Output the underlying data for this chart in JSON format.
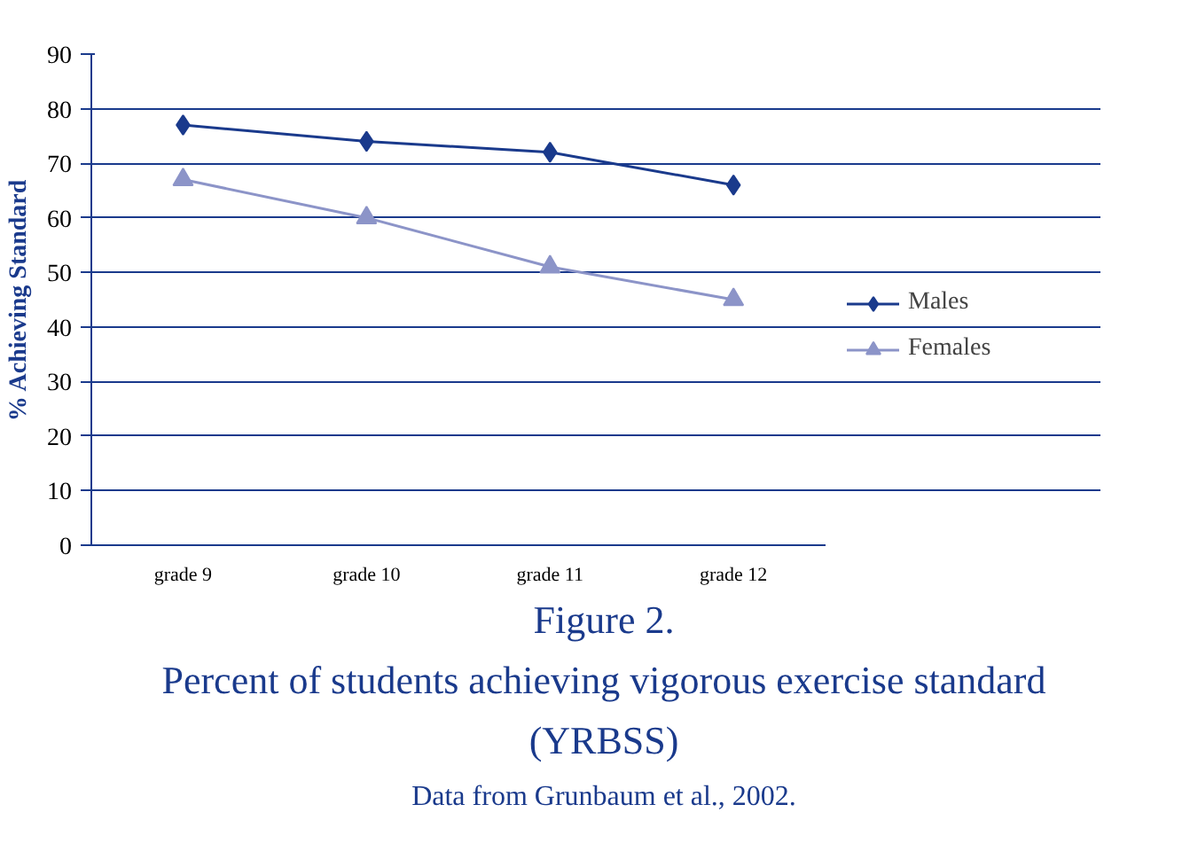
{
  "chart_data": {
    "type": "line",
    "title": "Figure 2.",
    "subtitle": "Percent of students achieving vigorous exercise standard (YRBSS)",
    "ylabel": "% Achieving Standard",
    "categories": [
      "grade 9",
      "grade 10",
      "grade 11",
      "grade 12"
    ],
    "series": [
      {
        "name": "Males",
        "color": "#1a3a8c",
        "values": [
          77,
          74,
          72,
          66
        ],
        "marker": "diamond"
      },
      {
        "name": "Females",
        "color": "#8c94c8",
        "values": [
          67,
          60,
          51,
          45
        ],
        "marker": "triangle"
      }
    ],
    "ylim": [
      0,
      90
    ],
    "yticks": [
      0,
      10,
      20,
      30,
      40,
      50,
      60,
      70,
      80,
      90
    ],
    "grid": "y",
    "legend": "right",
    "annotations": [
      "Data from Grunbaum et al., 2002."
    ]
  }
}
